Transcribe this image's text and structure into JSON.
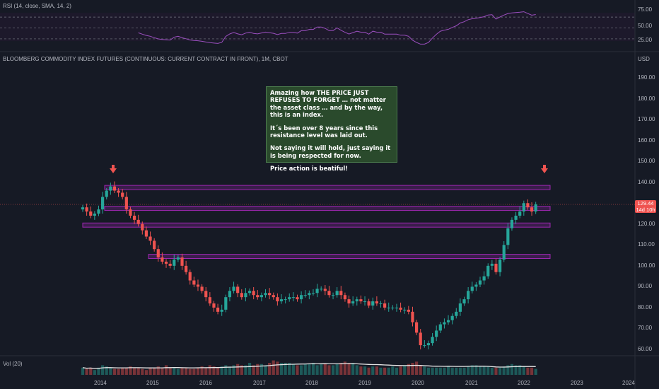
{
  "rsi_panel": {
    "title": "RSI (14, close, SMA, 14, 2)",
    "levels": [
      "75.00",
      "50.00",
      "25.00"
    ]
  },
  "main_panel": {
    "title": "BLOOMBERG COMMODITY INDEX FUTURES (CONTINUOUS: CURRENT CONTRACT IN FRONT), 1M, CBOT",
    "currency": "USD",
    "last_price": "129.44",
    "countdown": "14d 10h"
  },
  "volume_panel": {
    "title": "Vol (20)"
  },
  "annotation": {
    "paragraphs": [
      "Amazing how THE PRICE JUST REFUSES TO FORGET … not matter the asset class … and by the way, this is an index.",
      "It´s been over 8 years since this resistance level was laid out.",
      "Not saying it will hold, just saying it is being respected for now.",
      "Price action is beatiful!"
    ]
  },
  "colors": {
    "up": "#26a69a",
    "down": "#ef5350",
    "zone": "#9c27b0",
    "rsi_line": "#9c4fc0",
    "background": "#161a25"
  },
  "chart_data": {
    "type": "candlestick",
    "title": "BLOOMBERG COMMODITY INDEX FUTURES (CONTINUOUS: CURRENT CONTRACT IN FRONT), 1M, CBOT",
    "ylim": [
      56,
      198
    ],
    "y_ticks": [
      "190.00",
      "180.00",
      "170.00",
      "160.00",
      "150.00",
      "140.00",
      "130.00",
      "120.00",
      "110.00",
      "100.00",
      "90.00",
      "80.00",
      "70.00",
      "60.00"
    ],
    "x_ticks": [
      "2014",
      "2015",
      "2016",
      "2017",
      "2018",
      "2019",
      "2020",
      "2021",
      "2022",
      "2023",
      "2024"
    ],
    "zones": [
      {
        "low": 136.5,
        "high": 138.5
      },
      {
        "low": 126.5,
        "high": 128.5
      },
      {
        "low": 118.5,
        "high": 120.5
      },
      {
        "low": 103.5,
        "high": 105.5
      }
    ],
    "arrows": [
      "2014-03",
      "2022-05"
    ],
    "closes": [
      128,
      126,
      124,
      125,
      127,
      133,
      136,
      138,
      136,
      135,
      133,
      127,
      124,
      122,
      120,
      117,
      114,
      112,
      108,
      104,
      102,
      101,
      100,
      103,
      104,
      100,
      97,
      93,
      91,
      90,
      88,
      85,
      82,
      80,
      78,
      79,
      85,
      88,
      90,
      87,
      85,
      87,
      88,
      86,
      85,
      86,
      87,
      86,
      85,
      83,
      84,
      84,
      85,
      85,
      84,
      86,
      86,
      87,
      87,
      89,
      89,
      88,
      86,
      86,
      88,
      86,
      84,
      82,
      83,
      84,
      83,
      83,
      81,
      83,
      82,
      82,
      80,
      80,
      80,
      80,
      79,
      79,
      78,
      73,
      68,
      62,
      62,
      63,
      66,
      69,
      72,
      73,
      74,
      76,
      78,
      82,
      84,
      88,
      90,
      91,
      93,
      95,
      100,
      101,
      97,
      103,
      110,
      118,
      122,
      124,
      126,
      130,
      128,
      126,
      129.44
    ],
    "volumes": [
      3,
      2.5,
      3,
      2,
      3,
      4,
      3.5,
      3,
      2.5,
      2.5,
      3,
      3,
      3.5,
      3,
      3,
      2.5,
      2,
      3,
      3,
      3.5,
      3,
      4,
      3,
      3,
      2.5,
      3,
      3,
      2.5,
      2.5,
      3,
      3.5,
      3,
      4,
      3.5,
      3,
      3.5,
      4,
      3.5,
      4,
      4.5,
      4,
      4,
      5,
      4,
      4.5,
      4.5,
      4,
      5,
      6,
      5.5,
      5,
      5,
      5,
      4.5,
      4,
      4,
      4.5,
      4.5,
      5,
      4,
      4.5,
      4.5,
      4,
      4,
      4.5,
      5,
      5.5,
      5,
      5,
      4,
      3.5,
      3.5,
      3,
      3.5,
      3.5,
      3,
      3,
      3,
      3.5,
      3,
      3.5,
      4,
      4.5,
      5,
      5.5,
      4,
      3.5,
      3,
      3,
      3,
      3,
      3,
      3.5,
      3,
      3,
      3,
      3,
      3.5,
      4,
      4,
      3.5,
      3.5,
      3.5,
      3,
      3,
      3,
      3.5,
      4,
      4.5,
      4,
      4,
      3.5,
      3,
      3,
      2.5
    ],
    "rsi_levels": [
      75,
      50,
      25
    ]
  }
}
